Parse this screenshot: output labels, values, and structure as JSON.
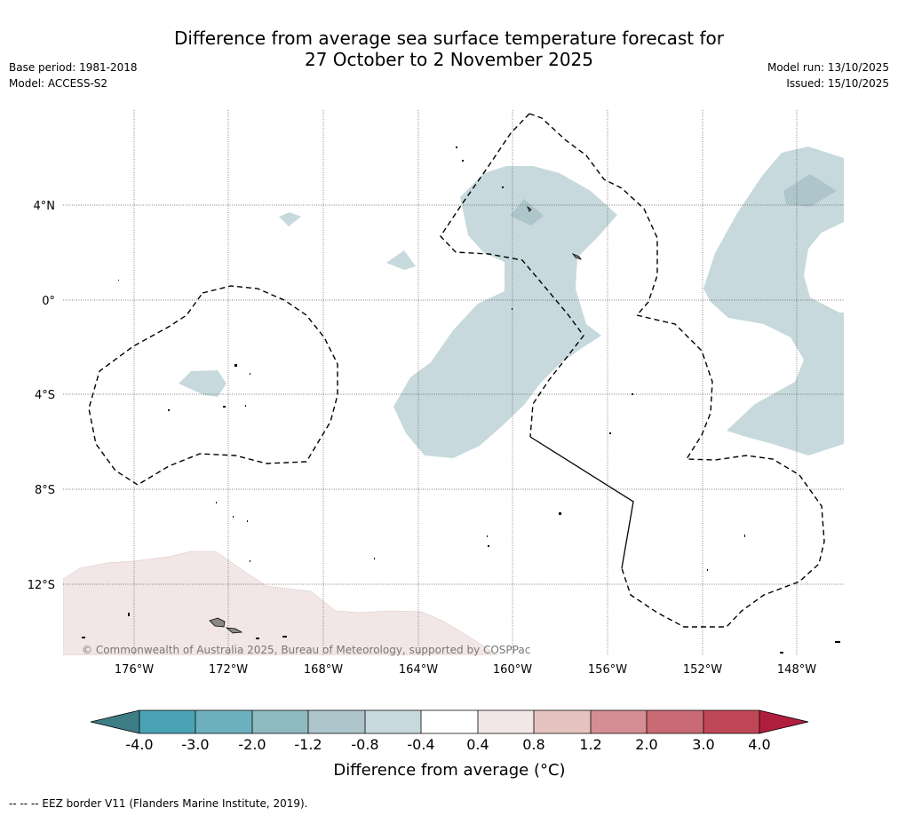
{
  "title": {
    "line1": "Difference from average sea surface temperature forecast for",
    "line2": "27 October to 2 November 2025"
  },
  "meta_left": {
    "base_period": "Base period: 1981-2018",
    "model": "Model: ACCESS-S2"
  },
  "meta_right": {
    "model_run": "Model run: 13/10/2025",
    "issued": "Issued: 15/10/2025"
  },
  "map": {
    "lat_labels": [
      "4°N",
      "0°",
      "4°S",
      "8°S",
      "12°S"
    ],
    "lon_labels": [
      "176°W",
      "172°W",
      "168°W",
      "164°W",
      "160°W",
      "156°W",
      "152°W",
      "148°W"
    ],
    "copyright": "© Commonwealth of Australia 2025, Bureau of Meteorology, supported by COSPPac"
  },
  "colorbar": {
    "ticks": [
      "-4.0",
      "-3.0",
      "-2.0",
      "-1.2",
      "-0.8",
      "-0.4",
      "0.4",
      "0.8",
      "1.2",
      "2.0",
      "3.0",
      "4.0"
    ],
    "colors": [
      "#3d7d85",
      "#4aa3b5",
      "#6cb0bd",
      "#8fbac0",
      "#adc5cb",
      "#c7d9dc",
      "#ffffff",
      "#f3e6e6",
      "#e6c3c0",
      "#d58e93",
      "#c96a75",
      "#c04757",
      "#b01e3e"
    ],
    "label": "Difference from average (°C)"
  },
  "footnote": "-- -- -- EEZ border V11 (Flanders Marine Institute, 2019)."
}
